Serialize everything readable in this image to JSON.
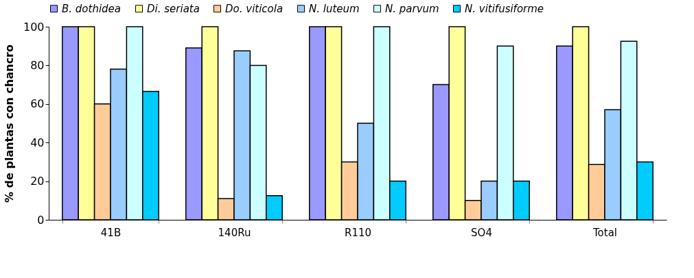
{
  "chart_data": {
    "type": "bar",
    "ylabel": "% de plantas con chancro",
    "categories": [
      "41B",
      "140Ru",
      "R110",
      "SO4",
      "Total"
    ],
    "series": [
      {
        "name": "B. dothidea",
        "color": "#9999ff",
        "values": [
          100,
          89,
          100,
          70,
          90
        ]
      },
      {
        "name": "Di. seriata",
        "color": "#ffff99",
        "values": [
          100,
          100,
          100,
          100,
          100
        ]
      },
      {
        "name": "Do. viticola",
        "color": "#ffcc99",
        "values": [
          60,
          11,
          30,
          10,
          28.6
        ]
      },
      {
        "name": "N. luteum",
        "color": "#99ccff",
        "values": [
          78,
          87.5,
          50,
          20,
          57
        ]
      },
      {
        "name": "N. parvum",
        "color": "#ccffff",
        "values": [
          100,
          80,
          100,
          90,
          92.5
        ]
      },
      {
        "name": "N. vitifusiforme",
        "color": "#00ccff",
        "values": [
          66.5,
          12.5,
          20,
          20,
          30
        ]
      }
    ],
    "ylim": [
      0,
      100
    ],
    "yticks": [
      0,
      20,
      40,
      60,
      80,
      100
    ],
    "grid": false,
    "legend": "top"
  }
}
